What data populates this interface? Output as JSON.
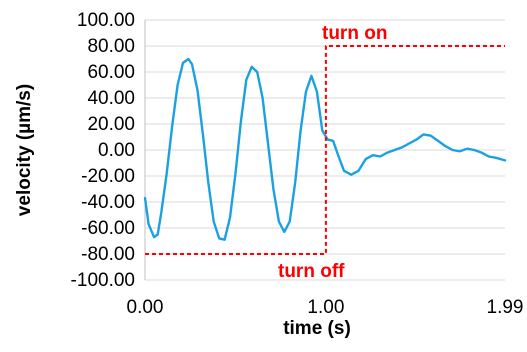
{
  "chart_data": {
    "type": "line",
    "title": "",
    "xlabel": "time (s)",
    "ylabel": "velocity (µm/s)",
    "xlim": [
      0.0,
      1.99
    ],
    "ylim": [
      -100.0,
      100.0
    ],
    "x_ticks": [
      0.0,
      1.0,
      1.99
    ],
    "x_tick_labels": [
      "0.00",
      "1.00",
      "1.99"
    ],
    "y_ticks": [
      100,
      80,
      60,
      40,
      20,
      0,
      -20,
      -40,
      -60,
      -80,
      -100
    ],
    "y_tick_labels": [
      "100.00",
      "80.00",
      "60.00",
      "40.00",
      "20.00",
      "0.00",
      "-20.00",
      "-40.00",
      "-60.00",
      "-80.00",
      "-100.00"
    ],
    "grid": "horizontal",
    "legend": "none",
    "series": [
      {
        "color": "#1ba1e2",
        "style": "solid",
        "x": [
          0.0,
          0.02,
          0.05,
          0.07,
          0.09,
          0.12,
          0.15,
          0.18,
          0.21,
          0.24,
          0.26,
          0.29,
          0.32,
          0.35,
          0.38,
          0.41,
          0.44,
          0.47,
          0.5,
          0.53,
          0.56,
          0.59,
          0.62,
          0.65,
          0.68,
          0.71,
          0.74,
          0.77,
          0.8,
          0.83,
          0.86,
          0.89,
          0.92,
          0.95,
          0.98,
          1.01,
          1.04,
          1.07,
          1.1,
          1.14,
          1.18,
          1.22,
          1.26,
          1.3,
          1.34,
          1.38,
          1.42,
          1.46,
          1.5,
          1.54,
          1.58,
          1.62,
          1.66,
          1.7,
          1.74,
          1.78,
          1.82,
          1.86,
          1.9,
          1.94,
          1.99
        ],
        "y": [
          -37,
          -57,
          -67,
          -65,
          -48,
          -18,
          18,
          50,
          67,
          70,
          66,
          46,
          12,
          -25,
          -55,
          -68,
          -69,
          -52,
          -18,
          22,
          54,
          64,
          60,
          40,
          5,
          -30,
          -55,
          -63,
          -55,
          -25,
          15,
          45,
          57,
          45,
          15,
          8,
          7,
          -5,
          -16,
          -19,
          -16,
          -7,
          -4,
          -5,
          -2,
          0,
          2,
          5,
          8,
          12,
          11,
          7,
          3,
          0,
          -1,
          1,
          0,
          -2,
          -5,
          -6,
          -8
        ]
      },
      {
        "color": "#ff0000",
        "style": "dashed",
        "x": [
          0.0,
          1.0,
          1.0,
          1.99
        ],
        "y": [
          -80,
          -80,
          80,
          80
        ]
      }
    ],
    "annotations": [
      {
        "text": "turn on",
        "color": "#ff0000"
      },
      {
        "text": "turn off",
        "color": "#ff0000"
      }
    ]
  }
}
